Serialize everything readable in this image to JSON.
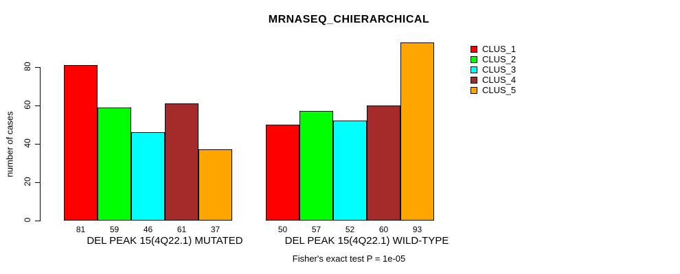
{
  "chart_data": {
    "type": "bar",
    "title": "MRNASEQ_CHIERARCHICAL",
    "xlabel": "",
    "ylabel": "number of cases",
    "annotation": "Fisher's exact test P = 1e-05",
    "categories": [
      "DEL PEAK 15(4Q22.1) MUTATED",
      "DEL PEAK 15(4Q22.1) WILD-TYPE"
    ],
    "series": [
      {
        "name": "CLUS_1",
        "color": "#ff0000",
        "values": [
          81,
          50
        ]
      },
      {
        "name": "CLUS_2",
        "color": "#00ff00",
        "values": [
          59,
          57
        ]
      },
      {
        "name": "CLUS_3",
        "color": "#00ffff",
        "values": [
          46,
          52
        ]
      },
      {
        "name": "CLUS_4",
        "color": "#a52a2a",
        "values": [
          61,
          60
        ]
      },
      {
        "name": "CLUS_5",
        "color": "#ffa500",
        "values": [
          37,
          93
        ]
      }
    ],
    "yticks": [
      0,
      20,
      40,
      60,
      80
    ],
    "ylim": [
      0,
      96
    ],
    "grid": false,
    "bar_value_labels": true,
    "legend_position": "right",
    "axis_color": "#000000",
    "background_color": "#ffffff"
  }
}
